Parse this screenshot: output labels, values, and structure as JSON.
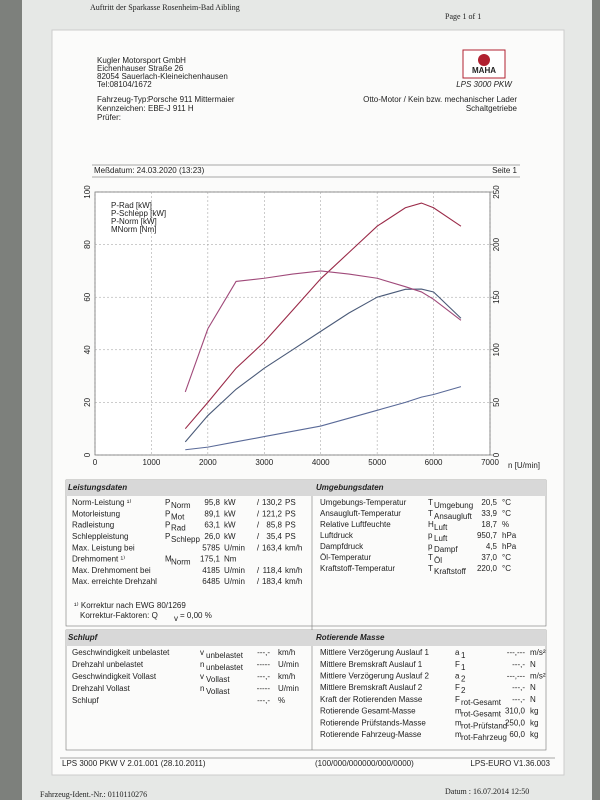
{
  "header": {
    "bank": "Auftritt der Sparkasse Rosenheim-Bad Aibling",
    "page": "Page 1 of 1"
  },
  "company": {
    "lines": [
      "Kugler Motorsport GmbH",
      "Eichenhauser Straße 26",
      "82054 Sauerlach-Kleineichenhausen",
      "Tel:08104/1672"
    ]
  },
  "logo": {
    "brand": "MAHA",
    "model": "LPS 3000 PKW"
  },
  "vehicle": {
    "type_label": "Fahrzeug-Typ:",
    "type": "Porsche 911 Mittermaier",
    "plate_label": "Kennzeichen:",
    "plate": "EBE-J 911 H",
    "inspector_label": "Prüfer:",
    "engine": "Otto-Motor / Kein bzw. mechanischer Lader",
    "gearbox": "Schaltgetriebe"
  },
  "measurement": {
    "date": "Meßdatum: 24.03.2020 (13:23)",
    "page": "Seite 1"
  },
  "chart": {
    "type": "line",
    "xlabel": "n [U/min]",
    "x": [
      1600,
      2000,
      2500,
      3000,
      3500,
      4000,
      4500,
      5000,
      5500,
      5785,
      6000,
      6485
    ],
    "series": [
      {
        "name": "P-Rad [kW]",
        "color": "#4a5a78",
        "values": [
          5,
          15,
          25,
          33,
          40,
          47,
          54,
          60,
          63,
          63.1,
          62,
          52
        ]
      },
      {
        "name": "P-Schlepp [kW]",
        "color": "#5a6a98",
        "values": [
          2,
          3,
          5,
          7,
          9,
          11,
          14,
          17,
          20,
          22,
          23,
          26
        ]
      },
      {
        "name": "P-Norm [kW]",
        "color": "#9a2a48",
        "values": [
          10,
          20,
          33,
          43,
          55,
          67,
          77,
          87,
          94,
          95.8,
          94,
          87
        ]
      },
      {
        "name": "MNorm [Nm]",
        "color": "#a04a7a",
        "axis": "y2",
        "values": [
          60,
          120,
          165,
          168,
          172,
          175,
          172,
          168,
          160,
          155,
          148,
          128
        ]
      }
    ],
    "xlim": [
      0,
      7000
    ],
    "xticks": [
      0,
      1000,
      2000,
      3000,
      4000,
      5000,
      6000,
      7000
    ],
    "ylim": [
      0,
      100
    ],
    "yticks": [
      0,
      20,
      40,
      60,
      80,
      100
    ],
    "y2lim": [
      0,
      250
    ],
    "y2ticks": [
      0,
      50,
      100,
      150,
      200,
      250
    ],
    "grid": true
  },
  "power": {
    "title": "Leistungsdaten",
    "rows": [
      {
        "label": "Norm-Leistung ¹⁾",
        "sym": "P",
        "sub": "Norm",
        "vals": [
          "95,8",
          "kW",
          "/",
          "130,2",
          "PS"
        ]
      },
      {
        "label": "Motorleistung",
        "sym": "P",
        "sub": "Mot",
        "vals": [
          "89,1",
          "kW",
          "/",
          "121,2",
          "PS"
        ]
      },
      {
        "label": "Radleistung",
        "sym": "P",
        "sub": "Rad",
        "vals": [
          "63,1",
          "kW",
          "/",
          "85,8",
          "PS"
        ]
      },
      {
        "label": "Schleppleistung",
        "sym": "P",
        "sub": "Schlepp",
        "vals": [
          "26,0",
          "kW",
          "/",
          "35,4",
          "PS"
        ]
      },
      {
        "label": "Max. Leistung bei",
        "vals": [
          "5785",
          "U/min",
          "/",
          "163,4",
          "km/h"
        ]
      },
      {
        "label": "Drehmoment ¹⁾",
        "sym": "M",
        "sub": "Norm",
        "vals": [
          "175,1",
          "Nm"
        ]
      },
      {
        "label": "Max. Drehmoment bei",
        "vals": [
          "4185",
          "U/min",
          "/",
          "118,4",
          "km/h"
        ]
      },
      {
        "label": "Max. erreichte Drehzahl",
        "vals": [
          "6485",
          "U/min",
          "/",
          "183,4",
          "km/h"
        ]
      }
    ],
    "note": "¹⁾ Korrektur nach EWG 80/1269",
    "factor_label": "Korrektur-Faktoren: Q",
    "factor_sub": "v",
    "factor_value": "=   0,00 %"
  },
  "environment": {
    "title": "Umgebungsdaten",
    "rows": [
      {
        "label": "Umgebungs-Temperatur",
        "sym": "T",
        "sub": "Umgebung",
        "vals": [
          "20,5",
          "°C"
        ]
      },
      {
        "label": "Ansaugluft-Temperatur",
        "sym": "T",
        "sub": "Ansaugluft",
        "vals": [
          "33,9",
          "°C"
        ]
      },
      {
        "label": "Relative Luftfeuchte",
        "sym": "H",
        "sub": "Luft",
        "vals": [
          "18,7",
          "%"
        ]
      },
      {
        "label": "Luftdruck",
        "sym": "p",
        "sub": "Luft",
        "vals": [
          "950,7",
          "hPa"
        ]
      },
      {
        "label": "Dampfdruck",
        "sym": "p",
        "sub": "Dampf",
        "vals": [
          "4,5",
          "hPa"
        ]
      },
      {
        "label": "Öl-Temperatur",
        "sym": "T",
        "sub": "Öl",
        "vals": [
          "37,0",
          "°C"
        ]
      },
      {
        "label": "Kraftstoff-Temperatur",
        "sym": "T",
        "sub": "Kraftstoff",
        "vals": [
          "220,0",
          "°C"
        ]
      }
    ]
  },
  "slip": {
    "title": "Schlupf",
    "rows": [
      {
        "label": "Geschwindigkeit unbelastet",
        "sym": "v",
        "sub": "unbelastet",
        "vals": [
          "---,-",
          "km/h"
        ]
      },
      {
        "label": "Drehzahl unbelastet",
        "sym": "n",
        "sub": "unbelastet",
        "vals": [
          "-----",
          "U/min"
        ]
      },
      {
        "label": "Geschwindigkeit Vollast",
        "sym": "v",
        "sub": "Vollast",
        "vals": [
          "---,-",
          "km/h"
        ]
      },
      {
        "label": "Drehzahl Vollast",
        "sym": "n",
        "sub": "Vollast",
        "vals": [
          "-----",
          "U/min"
        ]
      },
      {
        "label": "Schlupf",
        "vals": [
          "---,-",
          "%"
        ]
      }
    ]
  },
  "mass": {
    "title": "Rotierende Masse",
    "rows": [
      {
        "label": "Mittlere Verzögerung Auslauf 1",
        "sym": "a",
        "sub": "1",
        "vals": [
          "---,---",
          "m/s²"
        ]
      },
      {
        "label": "Mittlere Bremskraft Auslauf 1",
        "sym": "F",
        "sub": "1",
        "vals": [
          "---,-",
          "N"
        ]
      },
      {
        "label": "Mittlere Verzögerung Auslauf 2",
        "sym": "a",
        "sub": "2",
        "vals": [
          "---,---",
          "m/s²"
        ]
      },
      {
        "label": "Mittlere Bremskraft Auslauf 2",
        "sym": "F",
        "sub": "2",
        "vals": [
          "---,-",
          "N"
        ]
      },
      {
        "label": "Kraft der Rotierenden Masse",
        "sym": "F",
        "sub": "rot-Gesamt",
        "vals": [
          "---,-",
          "N"
        ]
      },
      {
        "label": "Rotierende Gesamt-Masse",
        "sym": "m",
        "sub": "rot-Gesamt",
        "vals": [
          "310,0",
          "kg"
        ]
      },
      {
        "label": "Rotierende Prüfstands-Masse",
        "sym": "m",
        "sub": "rot-Prüfstand",
        "vals": [
          "250,0",
          "kg"
        ]
      },
      {
        "label": "Rotierende Fahrzeug-Masse",
        "sym": "m",
        "sub": "rot-Fahrzeug",
        "vals": [
          "60,0",
          "kg"
        ]
      }
    ]
  },
  "footer": {
    "left": "LPS 3000 PKW V 2.01.001 (28.10.2011)",
    "middle": "(100/000/000000/000/0000)",
    "right": "LPS-EURO V1.36.003"
  },
  "bottom": {
    "ident": "Fahrzeug-Ident.-Nr.: 0110110276",
    "date": "Datum : 16.07.2014 12:50"
  }
}
